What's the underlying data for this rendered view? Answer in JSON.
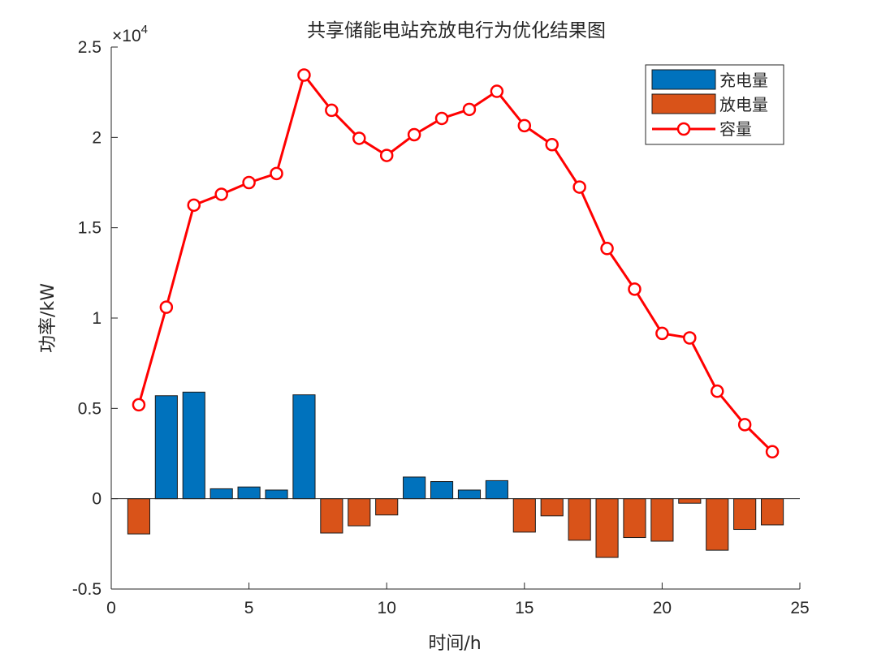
{
  "chart_data": {
    "type": "bar",
    "title": "共享储能电站充放电行为优化结果图",
    "xlabel": "时间/h",
    "ylabel": "功率/kW",
    "y_multiplier": "×10",
    "y_multiplier_exp": "4",
    "xlim": [
      0,
      25
    ],
    "ylim": [
      -0.5,
      2.5
    ],
    "y_scale": 10000,
    "x_ticks": [
      0,
      5,
      10,
      15,
      20,
      25
    ],
    "x_tick_labels": [
      "0",
      "5",
      "10",
      "15",
      "20",
      "25"
    ],
    "y_ticks": [
      -0.5,
      0,
      0.5,
      1,
      1.5,
      2,
      2.5
    ],
    "y_tick_labels": [
      "-0.5",
      "0",
      "0.5",
      "1",
      "1.5",
      "2",
      "2.5"
    ],
    "x": [
      1,
      2,
      3,
      4,
      5,
      6,
      7,
      8,
      9,
      10,
      11,
      12,
      13,
      14,
      15,
      16,
      17,
      18,
      19,
      20,
      21,
      22,
      23,
      24
    ],
    "grid": false,
    "legend_position": "top-right",
    "series": [
      {
        "name": "充电量",
        "kind": "bar",
        "color": "#0072BD",
        "values": [
          0,
          0.57,
          0.59,
          0.055,
          0.065,
          0.048,
          0.575,
          0,
          0,
          0,
          0.12,
          0.095,
          0.048,
          0.1,
          0,
          0,
          0,
          0,
          0,
          0,
          0,
          0,
          0,
          0
        ]
      },
      {
        "name": "放电量",
        "kind": "bar",
        "color": "#D95319",
        "values": [
          -0.195,
          0,
          0,
          0,
          0,
          0,
          0,
          -0.19,
          -0.15,
          -0.09,
          0,
          0,
          0,
          0,
          -0.185,
          -0.095,
          -0.23,
          -0.325,
          -0.215,
          -0.235,
          -0.025,
          -0.285,
          -0.17,
          -0.145
        ]
      },
      {
        "name": "容量",
        "kind": "line",
        "color": "#FF0000",
        "marker": "circle",
        "values": [
          0.52,
          1.06,
          1.625,
          1.685,
          1.75,
          1.8,
          2.345,
          2.15,
          1.995,
          1.9,
          2.015,
          2.105,
          2.155,
          2.255,
          2.065,
          1.96,
          1.725,
          1.385,
          1.16,
          0.915,
          0.89,
          0.595,
          0.41,
          0.26
        ]
      }
    ]
  }
}
